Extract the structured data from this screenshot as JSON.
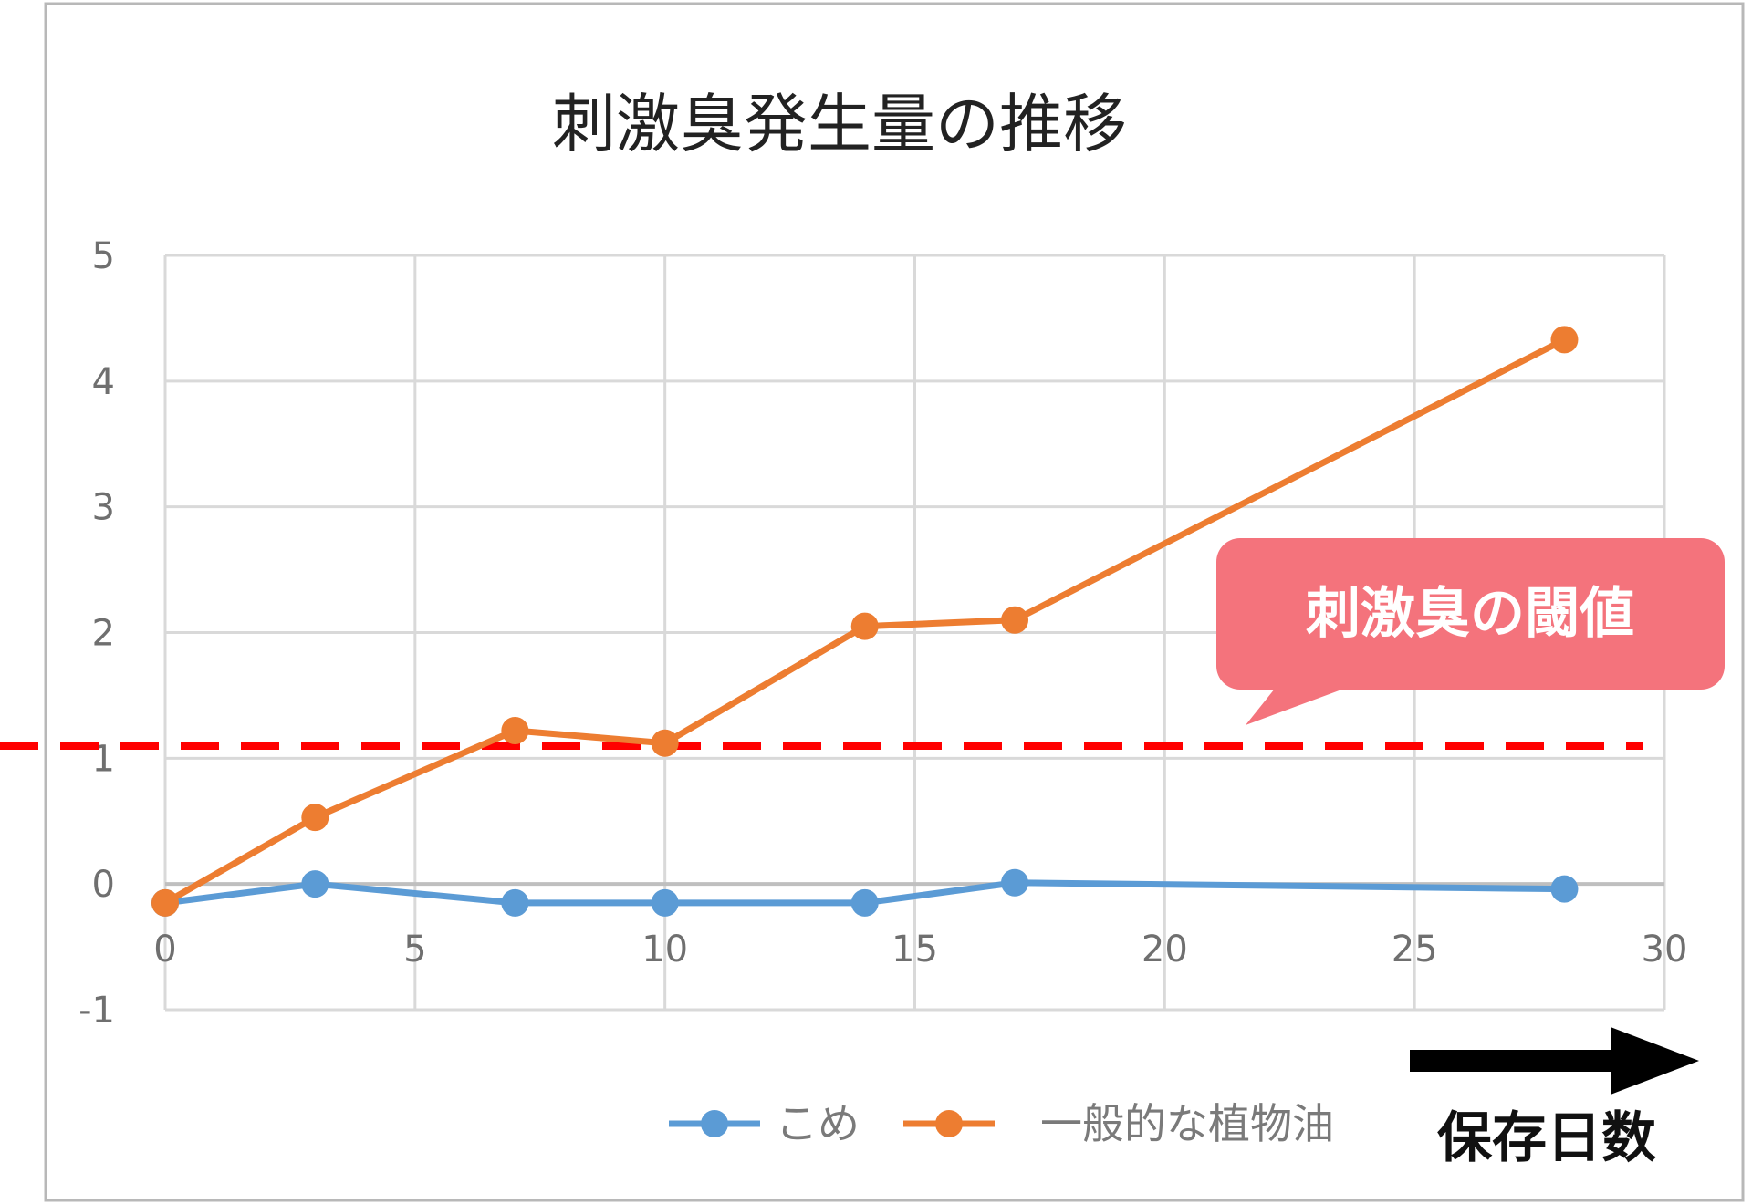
{
  "chart_data": {
    "type": "line",
    "title": "刺激臭発生量の推移",
    "xlabel": "保存日数",
    "ylabel": "",
    "xlim": [
      0,
      30
    ],
    "ylim": [
      -1,
      5
    ],
    "x_ticks": [
      "0",
      "5",
      "10",
      "15",
      "20",
      "25",
      "30"
    ],
    "y_ticks": [
      "-1",
      "0",
      "1",
      "2",
      "3",
      "4",
      "5"
    ],
    "grid": true,
    "legend_position": "bottom",
    "series": [
      {
        "name": "こめ",
        "color": "#5b9bd5",
        "x": [
          0,
          3,
          7,
          10,
          14,
          17,
          28
        ],
        "y": [
          -0.15,
          0.0,
          -0.15,
          -0.15,
          -0.15,
          0.01,
          -0.04
        ]
      },
      {
        "name": "一般的な植物油",
        "color": "#ed7d31",
        "x": [
          0,
          3,
          7,
          10,
          14,
          17,
          28
        ],
        "y": [
          -0.15,
          0.53,
          1.22,
          1.12,
          2.05,
          2.1,
          4.33
        ]
      }
    ],
    "threshold": {
      "label": "刺激臭の閾値",
      "value": 1.1,
      "color": "#ff0000",
      "callout_color": "#f4737c"
    },
    "arrow_icon": "right-arrow-icon"
  }
}
